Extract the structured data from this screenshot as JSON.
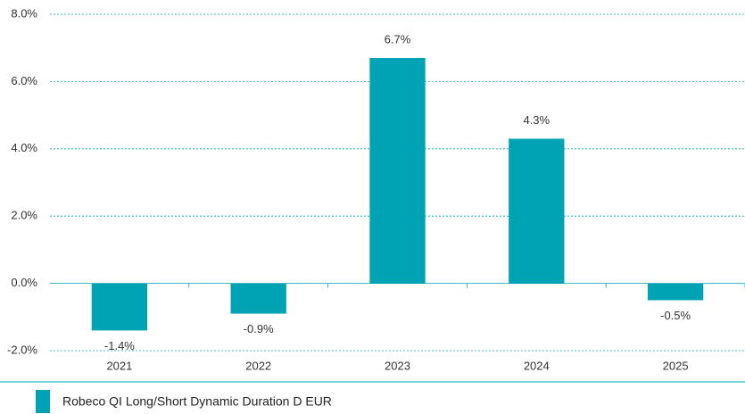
{
  "chart_data": {
    "type": "bar",
    "categories": [
      "2021",
      "2022",
      "2023",
      "2024",
      "2025"
    ],
    "series": [
      {
        "name": "Robeco QI Long/Short Dynamic Duration D EUR",
        "color": "#00a3b4",
        "values": [
          -1.4,
          -0.9,
          6.7,
          4.3,
          -0.5
        ],
        "value_labels": [
          "-1.4%",
          "-0.9%",
          "6.7%",
          "4.3%",
          "-0.5%"
        ]
      }
    ],
    "ylim": [
      -2,
      8
    ],
    "yticks": [
      {
        "value": -2,
        "label": "-2.0%"
      },
      {
        "value": 0,
        "label": "0.0%"
      },
      {
        "value": 2,
        "label": "2.0%"
      },
      {
        "value": 4,
        "label": "4.0%"
      },
      {
        "value": 6,
        "label": "6.0%"
      },
      {
        "value": 8,
        "label": "8.0%"
      }
    ],
    "grid": true
  }
}
